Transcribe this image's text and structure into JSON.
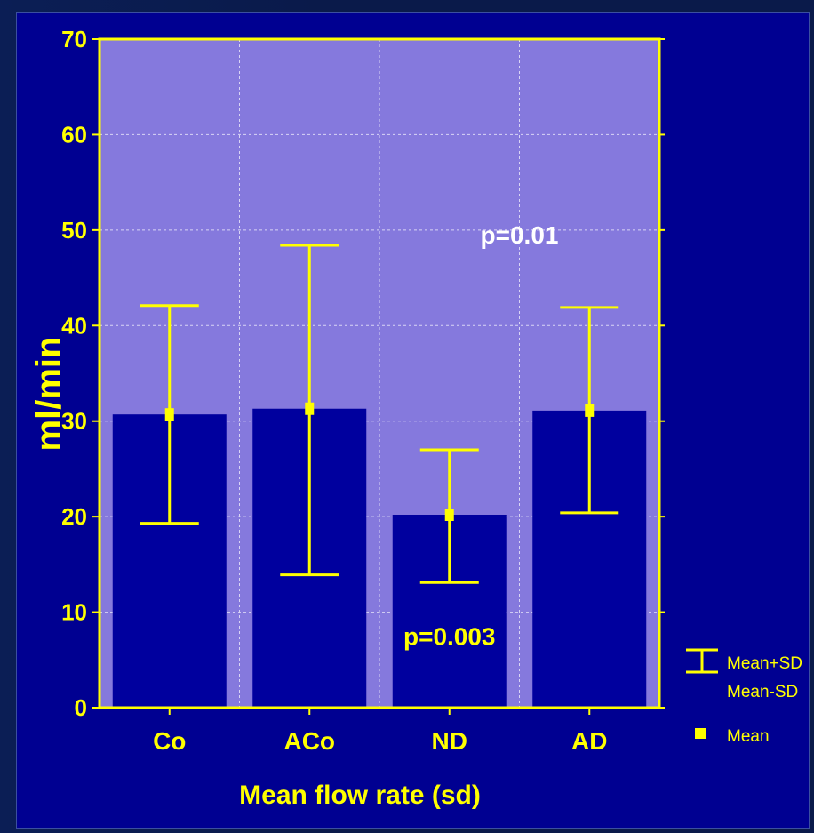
{
  "colors": {
    "background": "#000091",
    "plot_area": "#8579dd",
    "bar_fill": "#00009e",
    "axis": "#ffff00",
    "error_bar": "#ffff00",
    "mean_marker": "#ffff00",
    "label_text": "#ffff00",
    "annotation_upper": "#ffffff",
    "annotation_lower": "#ffff00",
    "grid": "#d9d5f5"
  },
  "chart_data": {
    "type": "bar",
    "title": "",
    "xlabel": "Mean flow rate (sd)",
    "ylabel": "ml/min",
    "ylim": [
      0,
      70
    ],
    "yticks": [
      0,
      10,
      20,
      30,
      40,
      50,
      60,
      70
    ],
    "grid": true,
    "categories": [
      "Co",
      "ACo",
      "ND",
      "AD"
    ],
    "values": [
      30.7,
      31.3,
      20.2,
      31.1
    ],
    "mean_plus_sd": [
      42.1,
      48.4,
      27.0,
      41.9
    ],
    "mean_minus_sd": [
      19.3,
      13.9,
      13.1,
      20.4
    ],
    "annotations": [
      {
        "text": "p=0.01",
        "x_between": [
          "ND",
          "AD"
        ],
        "y": 49.5,
        "style": "upper"
      },
      {
        "text": "p=0.003",
        "x": "ND",
        "y": 7.5,
        "style": "lower"
      }
    ],
    "legend": {
      "placement": "right",
      "items": [
        {
          "symbol": "error-bar",
          "labels": [
            "Mean+SD",
            "Mean-SD"
          ]
        },
        {
          "symbol": "square",
          "labels": [
            "Mean"
          ]
        }
      ]
    }
  }
}
